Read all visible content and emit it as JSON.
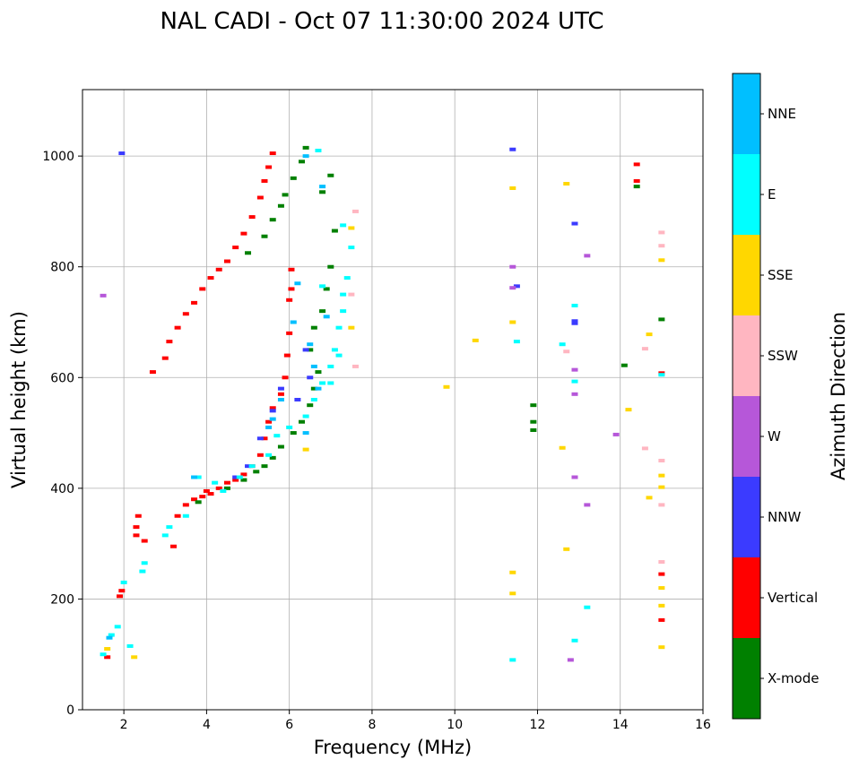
{
  "chart_data": {
    "type": "scatter",
    "title": "NAL CADI - Oct 07 11:30:00 2024 UTC",
    "xlabel": "Frequency (MHz)",
    "ylabel": "Virtual height (km)",
    "xlim": [
      1,
      16
    ],
    "ylim": [
      0,
      1120
    ],
    "xticks": [
      2,
      4,
      6,
      8,
      10,
      12,
      14,
      16
    ],
    "yticks": [
      0,
      200,
      400,
      600,
      800,
      1000
    ],
    "grid": true,
    "colorbar": {
      "label": "Azimuth Direction",
      "categories": [
        {
          "name": "X-mode",
          "color": "#008000"
        },
        {
          "name": "Vertical",
          "color": "#ff0000"
        },
        {
          "name": "NNW",
          "color": "#3b3bff"
        },
        {
          "name": "W",
          "color": "#b657d9"
        },
        {
          "name": "SSW",
          "color": "#ffb6c1"
        },
        {
          "name": "SSE",
          "color": "#ffd700"
        },
        {
          "name": "E",
          "color": "#00ffff"
        },
        {
          "name": "NNE",
          "color": "#00bfff"
        }
      ]
    },
    "series": [
      {
        "name": "Vertical",
        "color": "#ff0000",
        "points": [
          [
            1.6,
            95
          ],
          [
            1.9,
            205
          ],
          [
            1.95,
            215
          ],
          [
            2.3,
            330
          ],
          [
            2.3,
            315
          ],
          [
            2.35,
            350
          ],
          [
            2.5,
            305
          ],
          [
            2.7,
            610
          ],
          [
            3.0,
            635
          ],
          [
            3.2,
            295
          ],
          [
            3.3,
            350
          ],
          [
            3.5,
            370
          ],
          [
            3.7,
            380
          ],
          [
            3.9,
            385
          ],
          [
            4.0,
            395
          ],
          [
            4.1,
            390
          ],
          [
            4.3,
            400
          ],
          [
            4.5,
            410
          ],
          [
            4.7,
            415
          ],
          [
            4.9,
            425
          ],
          [
            5.1,
            440
          ],
          [
            5.3,
            460
          ],
          [
            5.4,
            490
          ],
          [
            5.5,
            520
          ],
          [
            5.6,
            545
          ],
          [
            5.8,
            570
          ],
          [
            5.9,
            600
          ],
          [
            5.95,
            640
          ],
          [
            6.0,
            680
          ],
          [
            6.0,
            740
          ],
          [
            6.05,
            795
          ],
          [
            6.05,
            760
          ],
          [
            3.1,
            665
          ],
          [
            3.3,
            690
          ],
          [
            3.5,
            715
          ],
          [
            3.7,
            735
          ],
          [
            3.9,
            760
          ],
          [
            4.1,
            780
          ],
          [
            4.3,
            795
          ],
          [
            4.5,
            810
          ],
          [
            4.7,
            835
          ],
          [
            4.9,
            860
          ],
          [
            5.1,
            890
          ],
          [
            5.3,
            925
          ],
          [
            5.4,
            955
          ],
          [
            5.5,
            980
          ],
          [
            5.6,
            1005
          ],
          [
            14.4,
            985
          ],
          [
            14.4,
            955
          ],
          [
            15.0,
            608
          ],
          [
            15.0,
            245
          ],
          [
            15.0,
            162
          ]
        ]
      },
      {
        "name": "X-mode",
        "color": "#008000",
        "points": [
          [
            3.8,
            375
          ],
          [
            4.5,
            400
          ],
          [
            4.9,
            415
          ],
          [
            5.2,
            430
          ],
          [
            5.4,
            440
          ],
          [
            5.6,
            455
          ],
          [
            5.8,
            475
          ],
          [
            6.1,
            500
          ],
          [
            6.3,
            520
          ],
          [
            6.5,
            550
          ],
          [
            6.6,
            580
          ],
          [
            6.7,
            610
          ],
          [
            6.5,
            650
          ],
          [
            6.6,
            690
          ],
          [
            6.8,
            720
          ],
          [
            6.9,
            760
          ],
          [
            7.0,
            800
          ],
          [
            5.0,
            825
          ],
          [
            5.4,
            855
          ],
          [
            5.6,
            885
          ],
          [
            5.8,
            910
          ],
          [
            5.9,
            930
          ],
          [
            6.1,
            960
          ],
          [
            6.3,
            990
          ],
          [
            6.4,
            1015
          ],
          [
            6.8,
            935
          ],
          [
            7.0,
            965
          ],
          [
            7.1,
            865
          ],
          [
            11.9,
            550
          ],
          [
            11.9,
            520
          ],
          [
            11.9,
            505
          ],
          [
            14.1,
            622
          ],
          [
            14.4,
            945
          ],
          [
            15.0,
            705
          ]
        ]
      },
      {
        "name": "NNW",
        "color": "#3b3bff",
        "points": [
          [
            1.95,
            1005
          ],
          [
            4.7,
            420
          ],
          [
            5.0,
            440
          ],
          [
            5.3,
            490
          ],
          [
            5.6,
            540
          ],
          [
            5.8,
            580
          ],
          [
            6.2,
            560
          ],
          [
            6.5,
            600
          ],
          [
            6.4,
            650
          ],
          [
            11.4,
            1012
          ],
          [
            11.5,
            765
          ],
          [
            12.9,
            878
          ],
          [
            12.9,
            698
          ],
          [
            12.9,
            702
          ]
        ]
      },
      {
        "name": "W",
        "color": "#b657d9",
        "points": [
          [
            1.5,
            748
          ],
          [
            11.4,
            800
          ],
          [
            11.4,
            762
          ],
          [
            12.9,
            614
          ],
          [
            12.9,
            570
          ],
          [
            12.9,
            420
          ],
          [
            13.2,
            820
          ],
          [
            13.2,
            370
          ],
          [
            13.9,
            497
          ],
          [
            12.8,
            90
          ]
        ]
      },
      {
        "name": "SSW",
        "color": "#ffb6c1",
        "points": [
          [
            7.6,
            900
          ],
          [
            7.5,
            750
          ],
          [
            7.6,
            620
          ],
          [
            12.7,
            647
          ],
          [
            14.6,
            652
          ],
          [
            14.6,
            472
          ],
          [
            15.0,
            862
          ],
          [
            15.0,
            838
          ],
          [
            15.0,
            450
          ],
          [
            15.0,
            370
          ],
          [
            15.0,
            267
          ]
        ]
      },
      {
        "name": "SSE",
        "color": "#ffd700",
        "points": [
          [
            1.6,
            110
          ],
          [
            2.25,
            95
          ],
          [
            6.4,
            470
          ],
          [
            7.5,
            870
          ],
          [
            7.5,
            690
          ],
          [
            9.8,
            583
          ],
          [
            10.5,
            667
          ],
          [
            11.4,
            942
          ],
          [
            11.4,
            700
          ],
          [
            11.4,
            248
          ],
          [
            11.4,
            210
          ],
          [
            12.7,
            950
          ],
          [
            12.7,
            290
          ],
          [
            12.6,
            473
          ],
          [
            14.2,
            542
          ],
          [
            14.7,
            678
          ],
          [
            14.7,
            383
          ],
          [
            15.0,
            812
          ],
          [
            15.0,
            423
          ],
          [
            15.0,
            402
          ],
          [
            15.0,
            220
          ],
          [
            15.0,
            188
          ],
          [
            15.0,
            113
          ]
        ]
      },
      {
        "name": "E",
        "color": "#00ffff",
        "points": [
          [
            1.5,
            100
          ],
          [
            1.7,
            135
          ],
          [
            1.85,
            150
          ],
          [
            2.0,
            230
          ],
          [
            2.15,
            115
          ],
          [
            2.45,
            250
          ],
          [
            2.5,
            265
          ],
          [
            3.0,
            315
          ],
          [
            3.1,
            330
          ],
          [
            3.5,
            350
          ],
          [
            3.8,
            420
          ],
          [
            4.2,
            410
          ],
          [
            4.4,
            395
          ],
          [
            4.8,
            420
          ],
          [
            5.1,
            440
          ],
          [
            5.5,
            460
          ],
          [
            5.7,
            495
          ],
          [
            6.0,
            510
          ],
          [
            6.4,
            530
          ],
          [
            6.6,
            560
          ],
          [
            6.8,
            590
          ],
          [
            7.0,
            620
          ],
          [
            7.1,
            650
          ],
          [
            7.2,
            690
          ],
          [
            7.3,
            720
          ],
          [
            7.3,
            750
          ],
          [
            7.4,
            780
          ],
          [
            7.5,
            835
          ],
          [
            7.3,
            875
          ],
          [
            7.0,
            590
          ],
          [
            7.2,
            640
          ],
          [
            6.8,
            765
          ],
          [
            6.7,
            1010
          ],
          [
            11.5,
            665
          ],
          [
            11.4,
            90
          ],
          [
            12.6,
            660
          ],
          [
            12.9,
            730
          ],
          [
            12.9,
            593
          ],
          [
            12.9,
            125
          ],
          [
            13.2,
            185
          ],
          [
            15.0,
            605
          ]
        ]
      },
      {
        "name": "NNE",
        "color": "#00bfff",
        "points": [
          [
            1.65,
            130
          ],
          [
            3.7,
            420
          ],
          [
            5.5,
            510
          ],
          [
            5.6,
            525
          ],
          [
            5.8,
            560
          ],
          [
            6.1,
            700
          ],
          [
            6.2,
            770
          ],
          [
            6.4,
            500
          ],
          [
            6.5,
            660
          ],
          [
            6.6,
            620
          ],
          [
            6.7,
            580
          ],
          [
            6.9,
            710
          ],
          [
            6.4,
            1000
          ],
          [
            6.8,
            945
          ]
        ]
      }
    ]
  }
}
